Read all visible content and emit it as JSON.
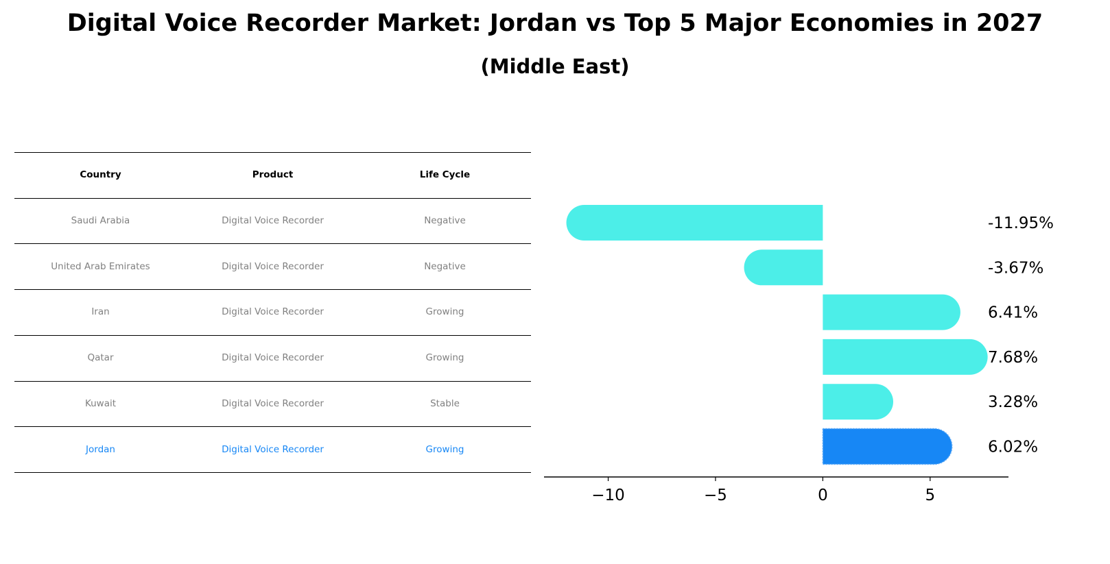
{
  "title": "Digital Voice Recorder Market: Jordan vs Top 5 Major Economies in 2027",
  "subtitle": "(Middle East)",
  "table": {
    "headers": [
      "Country",
      "Product",
      "Life Cycle"
    ],
    "rows": [
      [
        "Saudi Arabia",
        "Digital Voice Recorder",
        "Negative"
      ],
      [
        "United Arab Emirates",
        "Digital Voice Recorder",
        "Negative"
      ],
      [
        "Iran",
        "Digital Voice Recorder",
        "Growing"
      ],
      [
        "Qatar",
        "Digital Voice Recorder",
        "Growing"
      ],
      [
        "Kuwait",
        "Digital Voice Recorder",
        "Stable"
      ],
      [
        "Jordan",
        "Digital Voice Recorder",
        "Growing"
      ]
    ],
    "highlight_row": 5
  },
  "colors": {
    "bar": "#4ceee8",
    "highlight": "#1787f5",
    "muted_text": "#808080"
  },
  "chart_data": {
    "type": "bar",
    "orientation": "horizontal",
    "categories": [
      "Saudi Arabia",
      "United Arab Emirates",
      "Iran",
      "Qatar",
      "Kuwait",
      "Jordan"
    ],
    "values": [
      -11.95,
      -3.67,
      6.41,
      7.68,
      3.28,
      6.02
    ],
    "value_labels": [
      "-11.95%",
      "-3.67%",
      "6.41%",
      "7.68%",
      "3.28%",
      "6.02%"
    ],
    "xlim": [
      -12.99,
      8.65
    ],
    "xticks": [
      -10,
      -5,
      0,
      5
    ],
    "xtick_labels": [
      "−10",
      "−5",
      "0",
      "5"
    ],
    "highlight_index": 5,
    "grid": false
  }
}
